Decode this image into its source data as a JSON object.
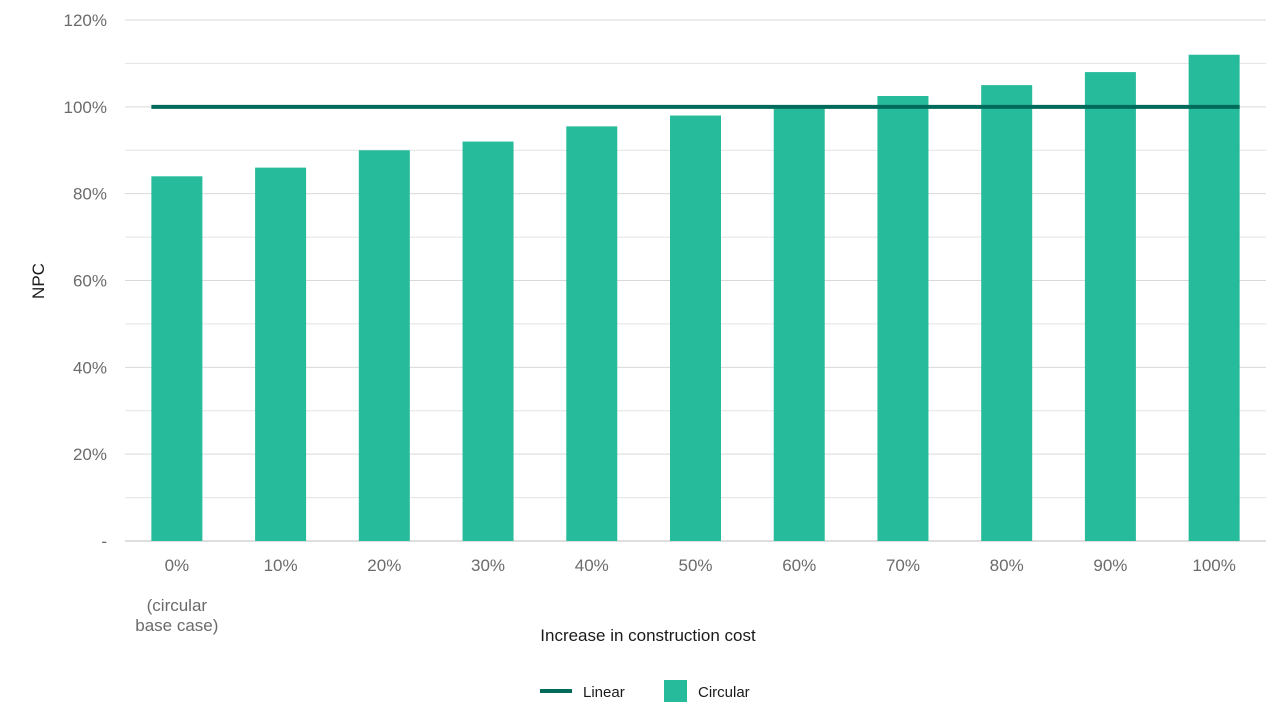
{
  "chart_data": {
    "type": "bar",
    "categories": [
      "0%",
      "10%",
      "20%",
      "30%",
      "40%",
      "50%",
      "60%",
      "70%",
      "80%",
      "90%",
      "100%"
    ],
    "category_note": "(circular\nbase case)",
    "xlabel": "Increase in construction cost",
    "ylabel": "NPC",
    "ylim": [
      0,
      120
    ],
    "yticks": [
      0,
      20,
      40,
      60,
      80,
      100,
      120
    ],
    "ytick_labels": [
      "-",
      "20%",
      "40%",
      "60%",
      "80%",
      "100%",
      "120%"
    ],
    "minor_gridlines": true,
    "series": [
      {
        "name": "Circular",
        "type": "bar",
        "color": "#26bb9b",
        "values": [
          84,
          86,
          90,
          92,
          95.5,
          98,
          100,
          102.5,
          105,
          108,
          112
        ]
      },
      {
        "name": "Linear",
        "type": "line",
        "color": "#006a5b",
        "values": [
          100,
          100,
          100,
          100,
          100,
          100,
          100,
          100,
          100,
          100,
          100
        ]
      }
    ],
    "legend": {
      "placement": "bottom-center",
      "order": [
        "Linear",
        "Circular"
      ]
    }
  }
}
